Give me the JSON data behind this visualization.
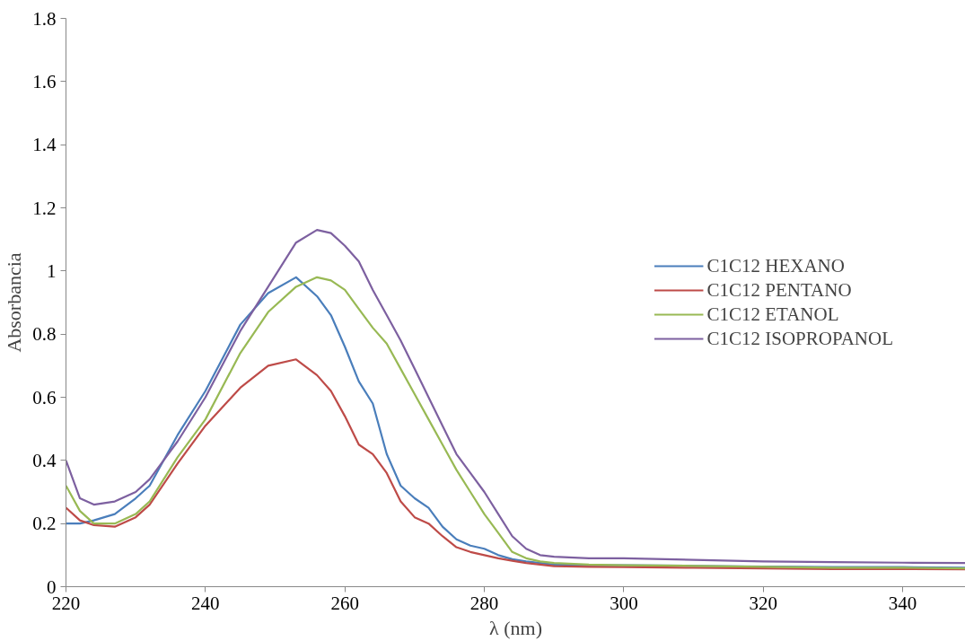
{
  "chart_data": {
    "type": "line",
    "xlabel": "λ (nm)",
    "ylabel": "Absorbancia",
    "x": [
      220,
      222,
      224,
      227,
      230,
      232,
      236,
      240,
      245,
      249,
      253,
      256,
      258,
      260,
      262,
      264,
      266,
      268,
      270,
      272,
      274,
      276,
      278,
      280,
      282,
      284,
      286,
      288,
      290,
      295,
      300,
      310,
      320,
      330,
      340,
      349
    ],
    "series": [
      {
        "name": "C1C12 HEXANO",
        "color": "#4a7ebb",
        "values": [
          0.2,
          0.2,
          0.21,
          0.23,
          0.28,
          0.32,
          0.48,
          0.62,
          0.83,
          0.93,
          0.98,
          0.92,
          0.86,
          0.76,
          0.65,
          0.58,
          0.42,
          0.32,
          0.28,
          0.25,
          0.19,
          0.15,
          0.13,
          0.12,
          0.1,
          0.087,
          0.08,
          0.075,
          0.07,
          0.068,
          0.068,
          0.066,
          0.064,
          0.062,
          0.062,
          0.06
        ]
      },
      {
        "name": "C1C12 PENTANO",
        "color": "#be4b48",
        "values": [
          0.25,
          0.21,
          0.195,
          0.19,
          0.22,
          0.26,
          0.39,
          0.51,
          0.63,
          0.7,
          0.72,
          0.67,
          0.62,
          0.54,
          0.45,
          0.42,
          0.36,
          0.27,
          0.22,
          0.2,
          0.16,
          0.125,
          0.11,
          0.1,
          0.09,
          0.082,
          0.075,
          0.07,
          0.065,
          0.063,
          0.062,
          0.06,
          0.058,
          0.056,
          0.056,
          0.055
        ]
      },
      {
        "name": "C1C12 ETANOL",
        "color": "#98b954",
        "values": [
          0.32,
          0.24,
          0.2,
          0.2,
          0.23,
          0.27,
          0.41,
          0.53,
          0.74,
          0.87,
          0.95,
          0.98,
          0.97,
          0.94,
          0.88,
          0.82,
          0.77,
          0.69,
          0.61,
          0.53,
          0.45,
          0.37,
          0.3,
          0.23,
          0.17,
          0.11,
          0.09,
          0.08,
          0.075,
          0.07,
          0.068,
          0.066,
          0.063,
          0.06,
          0.06,
          0.058
        ]
      },
      {
        "name": "C1C12 ISOPROPANOL",
        "color": "#7d60a0",
        "values": [
          0.4,
          0.28,
          0.26,
          0.27,
          0.3,
          0.34,
          0.46,
          0.6,
          0.81,
          0.95,
          1.09,
          1.13,
          1.12,
          1.08,
          1.03,
          0.94,
          0.86,
          0.78,
          0.69,
          0.6,
          0.51,
          0.42,
          0.36,
          0.3,
          0.23,
          0.16,
          0.12,
          0.1,
          0.095,
          0.09,
          0.09,
          0.085,
          0.08,
          0.078,
          0.076,
          0.075
        ]
      }
    ],
    "xlim": [
      220,
      349
    ],
    "xticks": [
      220,
      240,
      260,
      280,
      300,
      320,
      340
    ],
    "ylim": [
      0,
      1.8
    ],
    "yticks": [
      0,
      0.2,
      0.4,
      0.6,
      0.8,
      1,
      1.2,
      1.4,
      1.6,
      1.8
    ],
    "grid": false,
    "legend": "right",
    "marker": "none",
    "line_style": "solid"
  }
}
